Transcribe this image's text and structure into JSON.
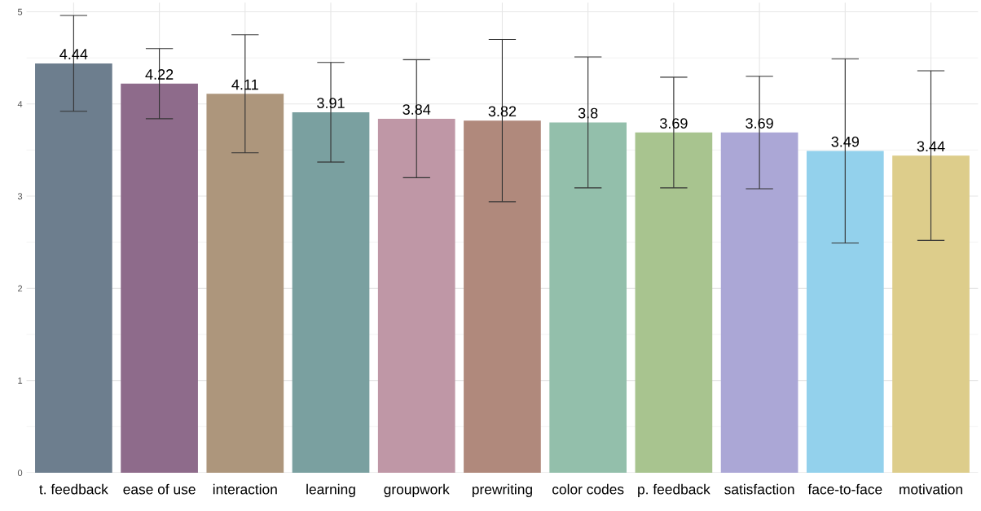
{
  "chart_data": {
    "type": "bar",
    "categories": [
      "t. feedback",
      "ease of use",
      "interaction",
      "learning",
      "groupwork",
      "prewriting",
      "color codes",
      "p. feedback",
      "satisfaction",
      "face-to-face",
      "motivation"
    ],
    "values": [
      4.44,
      4.22,
      4.11,
      3.91,
      3.84,
      3.82,
      3.8,
      3.69,
      3.69,
      3.49,
      3.44
    ],
    "errors": [
      0.52,
      0.38,
      0.64,
      0.54,
      0.64,
      0.88,
      0.71,
      0.6,
      0.61,
      1.0,
      0.92
    ],
    "colors": [
      "#6d7e8e",
      "#8e6b8b",
      "#ad967c",
      "#7aa0a0",
      "#bf97a6",
      "#b0897c",
      "#93bfab",
      "#a8c48f",
      "#aba7d6",
      "#93d1ec",
      "#ddcd8b"
    ],
    "ylim": [
      0,
      5.1
    ],
    "yticks": [
      0,
      1,
      2,
      3,
      4,
      5
    ],
    "data_labels": true,
    "grid": true
  }
}
